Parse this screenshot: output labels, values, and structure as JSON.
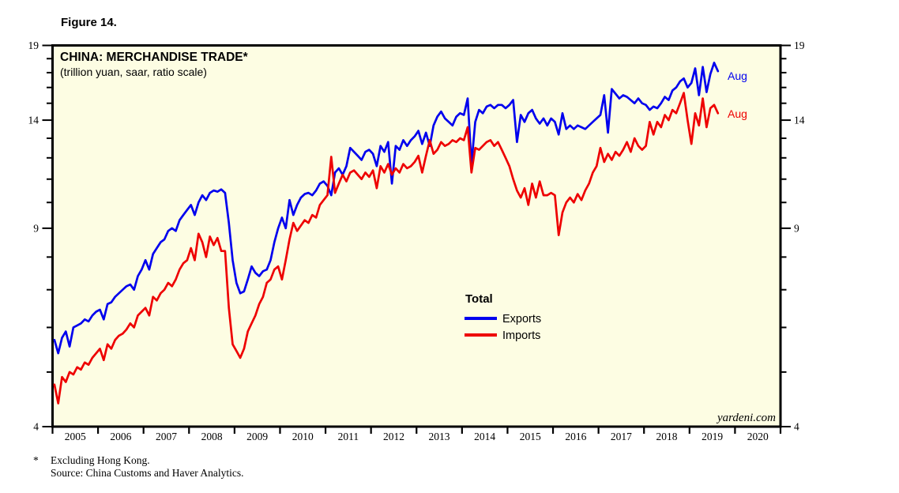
{
  "figure_label": "Figure 14.",
  "chart": {
    "title": "CHINA: MERCHANDISE TRADE*",
    "subtitle": "(trillion yuan, saar, ratio scale)",
    "watermark": "yardeni.com",
    "plot_bg_color": "#fdfde3",
    "border_color": "#000000",
    "legend": {
      "heading": "Total"
    },
    "end_labels": {
      "exports": "Aug",
      "imports": "Aug"
    }
  },
  "footnotes": {
    "marker": "*",
    "line1": "Excluding Hong Kong.",
    "line2": "Source: China Customs and Haver Analytics."
  },
  "chart_data": {
    "type": "line",
    "title": "CHINA: MERCHANDISE TRADE*",
    "subtitle": "(trillion yuan, saar, ratio scale)",
    "x_axis": {
      "range": [
        2005,
        2021
      ],
      "year_labels": [
        "2005",
        "2006",
        "2007",
        "2008",
        "2009",
        "2010",
        "2011",
        "2012",
        "2013",
        "2014",
        "2015",
        "2016",
        "2017",
        "2018",
        "2019",
        "2020"
      ]
    },
    "y_axis": {
      "scale": "log (ratio scale)",
      "range": [
        4,
        19
      ],
      "labeled_ticks": [
        4,
        9,
        14,
        19
      ],
      "minor_ticks": [
        5,
        6,
        7,
        8,
        10,
        11,
        12,
        13,
        15,
        16,
        17,
        18
      ],
      "unit": "trillion yuan, saar"
    },
    "frequency": "monthly",
    "start": "2005-01",
    "end": "2019-08",
    "legend_position": "center-right of plot",
    "grid": false,
    "series": [
      {
        "name": "Exports",
        "color": "#0000ee",
        "values": [
          5.7,
          5.4,
          5.75,
          5.9,
          5.55,
          6.0,
          6.05,
          6.1,
          6.2,
          6.15,
          6.3,
          6.4,
          6.45,
          6.2,
          6.6,
          6.65,
          6.8,
          6.9,
          7.0,
          7.1,
          7.15,
          7.0,
          7.4,
          7.6,
          7.9,
          7.6,
          8.1,
          8.3,
          8.5,
          8.6,
          8.9,
          9.0,
          8.9,
          9.3,
          9.5,
          9.7,
          9.9,
          9.5,
          10.0,
          10.3,
          10.1,
          10.4,
          10.5,
          10.45,
          10.55,
          10.4,
          9.2,
          7.9,
          7.2,
          6.9,
          6.95,
          7.3,
          7.7,
          7.5,
          7.4,
          7.55,
          7.6,
          7.9,
          8.5,
          9.0,
          9.4,
          9.0,
          10.1,
          9.5,
          9.9,
          10.2,
          10.35,
          10.4,
          10.3,
          10.5,
          10.8,
          10.9,
          10.7,
          10.3,
          11.3,
          11.5,
          11.2,
          11.6,
          12.5,
          12.3,
          12.1,
          11.9,
          12.3,
          12.4,
          12.2,
          11.6,
          12.6,
          12.3,
          12.8,
          10.8,
          12.6,
          12.4,
          12.9,
          12.6,
          12.9,
          13.1,
          13.4,
          12.7,
          13.3,
          12.6,
          13.7,
          14.2,
          14.5,
          14.1,
          13.9,
          13.7,
          14.2,
          14.4,
          14.3,
          15.3,
          11.7,
          13.9,
          14.6,
          14.4,
          14.8,
          14.9,
          14.7,
          14.9,
          14.9,
          14.7,
          14.9,
          15.2,
          12.8,
          14.3,
          13.9,
          14.4,
          14.6,
          14.1,
          13.8,
          14.1,
          13.7,
          14.1,
          13.9,
          13.2,
          14.4,
          13.5,
          13.7,
          13.5,
          13.7,
          13.6,
          13.5,
          13.7,
          13.9,
          14.1,
          14.3,
          15.5,
          13.3,
          15.9,
          15.6,
          15.3,
          15.5,
          15.4,
          15.2,
          15.0,
          15.3,
          15.0,
          14.9,
          14.6,
          14.8,
          14.7,
          15.0,
          15.4,
          15.2,
          15.8,
          16.0,
          16.4,
          16.6,
          16.0,
          16.3,
          17.3,
          15.5,
          17.4,
          15.7,
          16.9,
          17.7,
          17.1
        ]
      },
      {
        "name": "Imports",
        "color": "#ee0000",
        "values": [
          4.75,
          4.4,
          4.9,
          4.8,
          5.0,
          4.95,
          5.1,
          5.05,
          5.2,
          5.15,
          5.3,
          5.4,
          5.5,
          5.25,
          5.6,
          5.5,
          5.7,
          5.8,
          5.85,
          5.95,
          6.1,
          6.0,
          6.3,
          6.4,
          6.5,
          6.3,
          6.8,
          6.7,
          6.9,
          7.0,
          7.2,
          7.1,
          7.3,
          7.6,
          7.8,
          7.9,
          8.3,
          7.9,
          8.8,
          8.5,
          8.0,
          8.7,
          8.4,
          8.65,
          8.2,
          8.2,
          6.5,
          5.6,
          5.45,
          5.3,
          5.5,
          5.9,
          6.1,
          6.3,
          6.6,
          6.8,
          7.2,
          7.3,
          7.6,
          7.7,
          7.3,
          7.9,
          8.6,
          9.2,
          8.9,
          9.1,
          9.3,
          9.2,
          9.5,
          9.4,
          9.9,
          10.1,
          10.3,
          12.05,
          10.4,
          10.8,
          11.2,
          10.9,
          11.3,
          11.4,
          11.2,
          11.0,
          11.3,
          11.1,
          11.4,
          10.6,
          11.6,
          11.3,
          11.7,
          11.2,
          11.5,
          11.3,
          11.7,
          11.5,
          11.6,
          11.8,
          12.1,
          11.3,
          12.1,
          12.9,
          12.2,
          12.4,
          12.8,
          12.6,
          12.7,
          12.9,
          12.8,
          13.0,
          12.9,
          13.6,
          11.3,
          12.5,
          12.4,
          12.6,
          12.8,
          12.9,
          12.6,
          12.8,
          12.4,
          12.0,
          11.6,
          11.0,
          10.5,
          10.2,
          10.6,
          9.9,
          10.8,
          10.2,
          10.9,
          10.3,
          10.3,
          10.4,
          10.3,
          8.75,
          9.6,
          10.0,
          10.2,
          10.0,
          10.35,
          10.1,
          10.5,
          10.8,
          11.3,
          11.6,
          12.5,
          11.8,
          12.2,
          11.9,
          12.3,
          12.1,
          12.4,
          12.8,
          12.3,
          13.0,
          12.6,
          12.4,
          12.6,
          13.9,
          13.2,
          13.9,
          13.6,
          14.3,
          14.0,
          14.6,
          14.4,
          15.0,
          15.65,
          14.0,
          12.7,
          14.4,
          13.7,
          15.3,
          13.6,
          14.7,
          14.9,
          14.4
        ]
      }
    ]
  }
}
